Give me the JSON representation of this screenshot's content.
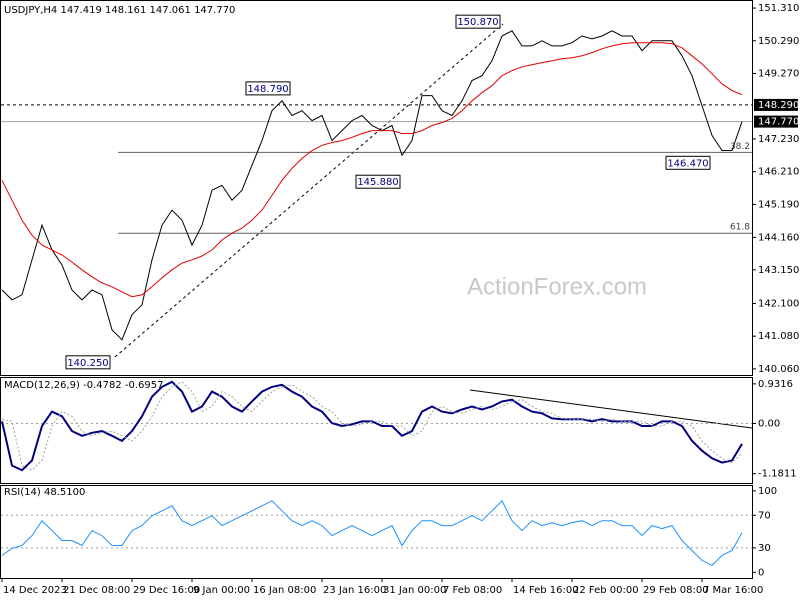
{
  "chart_data": [
    {
      "type": "line",
      "title": "USDJPY,H4  147.419 148.161 147.061 147.770",
      "watermark": "ActionForex.com",
      "ylim": [
        139.87,
        151.53
      ],
      "yticks": [
        {
          "value": 151.31,
          "label": "151.310"
        },
        {
          "value": 150.29,
          "label": "150.290"
        },
        {
          "value": 149.27,
          "label": "149.270"
        },
        {
          "value": 147.23,
          "label": "147.230"
        },
        {
          "value": 146.21,
          "label": "146.210"
        },
        {
          "value": 145.19,
          "label": "145.190"
        },
        {
          "value": 144.16,
          "label": "144.160"
        },
        {
          "value": 143.15,
          "label": "143.150"
        },
        {
          "value": 142.1,
          "label": "142.100"
        },
        {
          "value": 141.08,
          "label": "141.080"
        },
        {
          "value": 140.06,
          "label": "140.060"
        }
      ],
      "series": [
        {
          "color": "#000000",
          "values": [
            142.52,
            142.21,
            142.37,
            143.46,
            144.54,
            143.77,
            143.3,
            142.52,
            142.21,
            142.52,
            142.37,
            141.28,
            140.97,
            141.75,
            142.06,
            143.46,
            144.54,
            145.01,
            144.7,
            143.92,
            144.54,
            145.63,
            145.78,
            145.32,
            145.63,
            146.41,
            147.18,
            148.11,
            148.42,
            147.96,
            148.11,
            147.8,
            147.96,
            147.18,
            147.49,
            147.8,
            147.96,
            147.65,
            147.49,
            147.65,
            146.72,
            147.18,
            148.58,
            148.58,
            148.11,
            147.96,
            148.42,
            149.05,
            149.2,
            149.67,
            150.44,
            150.6,
            150.13,
            150.13,
            150.29,
            150.13,
            150.13,
            150.23,
            150.44,
            150.35,
            150.44,
            150.6,
            150.44,
            150.44,
            149.98,
            150.29,
            150.29,
            150.29,
            149.82,
            149.2,
            148.27,
            147.34,
            146.87,
            146.87,
            147.77
          ]
        },
        {
          "color": "#e00000",
          "values": [
            145.94,
            145.32,
            144.7,
            144.23,
            143.92,
            143.77,
            143.61,
            143.39,
            143.15,
            142.93,
            142.74,
            142.62,
            142.46,
            142.31,
            142.37,
            142.62,
            142.9,
            143.15,
            143.36,
            143.46,
            143.58,
            143.77,
            144.08,
            144.29,
            144.45,
            144.7,
            145.01,
            145.47,
            145.94,
            146.31,
            146.62,
            146.87,
            147.03,
            147.12,
            147.18,
            147.28,
            147.4,
            147.49,
            147.49,
            147.49,
            147.4,
            147.4,
            147.49,
            147.65,
            147.74,
            147.87,
            148.11,
            148.42,
            148.67,
            148.89,
            149.2,
            149.36,
            149.48,
            149.54,
            149.61,
            149.67,
            149.73,
            149.76,
            149.82,
            149.92,
            150.04,
            150.13,
            150.2,
            150.23,
            150.23,
            150.23,
            150.23,
            150.2,
            150.07,
            149.82,
            149.57,
            149.26,
            148.95,
            148.74,
            148.61
          ]
        }
      ],
      "levels": [
        {
          "value": 148.29,
          "label": "148.290",
          "style": "dashed"
        },
        {
          "value": 147.77,
          "label": "147.770",
          "style": "solid"
        }
      ],
      "fib": [
        {
          "value": 146.81,
          "ratio": 38.2
        },
        {
          "value": 144.29,
          "ratio": 61.8
        }
      ],
      "annotations": [
        {
          "index": 50,
          "value": 150.87,
          "label": "150.870"
        },
        {
          "index": 29,
          "value": 148.79,
          "label": "148.790"
        },
        {
          "index": 40,
          "value": 145.88,
          "label": "145.880"
        },
        {
          "index": 11,
          "value": 140.25,
          "label": "140.250"
        },
        {
          "index": 71,
          "value": 146.47,
          "label": "146.470"
        }
      ]
    },
    {
      "type": "line",
      "title": "MACD(12,26,9) -0.4782 -0.6957",
      "ylim": [
        -1.4,
        1.07
      ],
      "yticks": [
        0.9316,
        {
          "value": 0,
          "label": "0.00"
        },
        -1.1811
      ],
      "levels": [
        0
      ],
      "series": [
        {
          "color": "#000080",
          "values": [
            0.05,
            -0.99,
            -1.1,
            -0.87,
            -0.06,
            0.28,
            0.17,
            -0.18,
            -0.29,
            -0.22,
            -0.18,
            -0.29,
            -0.41,
            -0.18,
            0.17,
            0.63,
            0.86,
            0.98,
            0.75,
            0.28,
            0.4,
            0.75,
            0.63,
            0.4,
            0.28,
            0.52,
            0.75,
            0.86,
            0.91,
            0.75,
            0.63,
            0.4,
            0.28,
            0.01,
            -0.06,
            -0.02,
            0.05,
            0.05,
            -0.06,
            -0.06,
            -0.29,
            -0.18,
            0.28,
            0.4,
            0.28,
            0.24,
            0.33,
            0.4,
            0.33,
            0.4,
            0.52,
            0.56,
            0.4,
            0.28,
            0.24,
            0.12,
            0.1,
            0.1,
            0.1,
            0.05,
            0.1,
            0.05,
            0.05,
            0.05,
            -0.06,
            -0.06,
            0.05,
            0.05,
            -0.06,
            -0.41,
            -0.64,
            -0.82,
            -0.92,
            -0.87,
            -0.48
          ]
        },
        {
          "color": "#a0a0a0",
          "values": [
            0.1,
            0.05,
            -0.99,
            -1.1,
            -0.87,
            -0.06,
            0.28,
            0.17,
            -0.18,
            -0.29,
            -0.22,
            -0.18,
            -0.29,
            -0.41,
            -0.18,
            0.17,
            0.63,
            0.86,
            0.98,
            0.75,
            0.28,
            0.4,
            0.75,
            0.63,
            0.4,
            0.28,
            0.52,
            0.75,
            0.86,
            0.91,
            0.75,
            0.63,
            0.4,
            0.28,
            0.01,
            -0.06,
            -0.02,
            0.05,
            0.05,
            -0.06,
            -0.06,
            -0.29,
            -0.18,
            0.28,
            0.4,
            0.28,
            0.24,
            0.33,
            0.4,
            0.33,
            0.4,
            0.52,
            0.56,
            0.4,
            0.28,
            0.24,
            0.12,
            0.1,
            0.1,
            0.1,
            0.05,
            0.1,
            0.05,
            0.05,
            0.05,
            -0.06,
            -0.06,
            0.05,
            0.05,
            -0.06,
            -0.41,
            -0.64,
            -0.82,
            -0.92,
            -0.7
          ]
        }
      ]
    },
    {
      "type": "line",
      "title": "RSI(14) 48.5100",
      "ylim": [
        -7,
        106
      ],
      "yticks": [
        100,
        70,
        30,
        0
      ],
      "levels": [
        70,
        30
      ],
      "categories": [
        "14 Dec 2023",
        null,
        null,
        null,
        null,
        null,
        "21 Dec 08:00",
        null,
        null,
        null,
        null,
        null,
        null,
        "29 Dec 16:00",
        null,
        null,
        null,
        null,
        null,
        "9 Jan 00:00",
        null,
        null,
        null,
        null,
        null,
        "16 Jan 08:00",
        null,
        null,
        null,
        null,
        null,
        null,
        "23 Jan 16:00",
        null,
        null,
        null,
        null,
        null,
        "31 Jan 00:00",
        null,
        null,
        null,
        null,
        null,
        "7 Feb 08:00",
        null,
        null,
        null,
        null,
        null,
        null,
        "14 Feb 16:00",
        null,
        null,
        null,
        null,
        null,
        "22 Feb 00:00",
        null,
        null,
        null,
        null,
        null,
        null,
        "29 Feb 08:00",
        null,
        null,
        null,
        null,
        null,
        "7 Mar 16:00",
        null,
        null,
        null,
        null
      ],
      "series": [
        {
          "color": "#1e90ff",
          "values": [
            20.7,
            29.3,
            32.9,
            45.1,
            63.4,
            51.2,
            39.0,
            39.0,
            32.9,
            51.2,
            45.1,
            32.9,
            32.9,
            51.2,
            57.3,
            69.5,
            75.6,
            81.7,
            63.4,
            57.3,
            63.4,
            69.5,
            57.3,
            63.4,
            69.5,
            75.6,
            81.7,
            87.8,
            75.6,
            63.4,
            57.3,
            63.4,
            57.3,
            45.1,
            51.2,
            57.3,
            51.2,
            45.1,
            51.2,
            57.3,
            32.9,
            51.2,
            63.4,
            63.4,
            57.3,
            57.3,
            63.4,
            69.5,
            63.4,
            75.6,
            87.8,
            63.4,
            51.2,
            63.4,
            57.3,
            61.0,
            57.3,
            61.0,
            63.4,
            57.3,
            63.4,
            63.4,
            57.3,
            57.3,
            45.1,
            57.3,
            53.7,
            57.3,
            39.0,
            26.8,
            14.6,
            8.5,
            20.7,
            26.8,
            48.51
          ]
        }
      ]
    }
  ]
}
